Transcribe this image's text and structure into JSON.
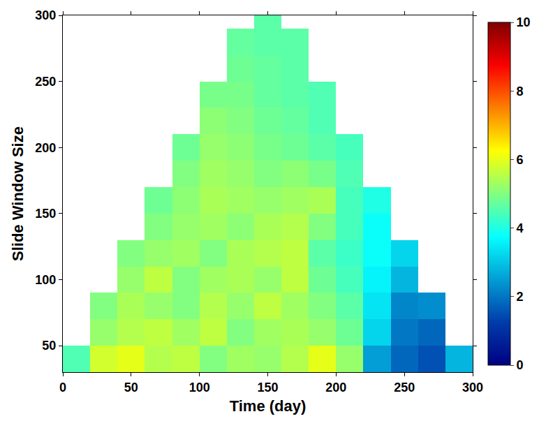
{
  "chart_data": {
    "type": "heatmap",
    "x_label": "Time (day)",
    "y_label": "Slide Window Size",
    "xlim": [
      0,
      300
    ],
    "xticks": [
      0,
      50,
      100,
      150,
      200,
      250,
      300
    ],
    "ylim": [
      30,
      300
    ],
    "yticks": [
      50,
      100,
      150,
      200,
      250,
      300
    ],
    "x": [
      10,
      30,
      50,
      70,
      90,
      110,
      130,
      150,
      170,
      190,
      210,
      230,
      250,
      270,
      290
    ],
    "y": [
      40,
      60,
      80,
      100,
      120,
      140,
      160,
      180,
      200,
      220,
      240,
      260,
      280,
      300
    ],
    "z": [
      [
        4.5,
        5.8,
        6.0,
        5.5,
        5.6,
        5.0,
        5.3,
        5.2,
        5.5,
        6.0,
        5.2,
        2.5,
        1.8,
        1.5,
        2.8
      ],
      [
        null,
        5.2,
        5.5,
        5.6,
        5.3,
        5.6,
        5.0,
        5.3,
        5.4,
        5.2,
        4.8,
        3.2,
        2.0,
        1.8,
        null
      ],
      [
        null,
        5.0,
        5.4,
        5.2,
        5.0,
        5.5,
        5.2,
        5.6,
        5.3,
        5.0,
        4.6,
        3.4,
        2.2,
        2.3,
        null
      ],
      [
        null,
        null,
        5.2,
        5.6,
        5.0,
        5.3,
        5.4,
        5.2,
        5.6,
        4.8,
        4.4,
        3.6,
        2.8,
        null,
        null
      ],
      [
        null,
        null,
        5.0,
        5.2,
        5.3,
        5.0,
        5.4,
        5.5,
        5.6,
        4.6,
        4.3,
        3.8,
        3.2,
        null,
        null
      ],
      [
        null,
        null,
        null,
        5.0,
        5.2,
        5.3,
        5.1,
        5.4,
        5.5,
        5.0,
        4.4,
        3.8,
        null,
        null,
        null
      ],
      [
        null,
        null,
        null,
        4.8,
        5.1,
        5.4,
        5.3,
        5.2,
        5.3,
        5.4,
        4.4,
        4.0,
        null,
        null,
        null
      ],
      [
        null,
        null,
        null,
        null,
        5.0,
        5.3,
        5.2,
        5.0,
        5.1,
        4.9,
        4.5,
        null,
        null,
        null,
        null
      ],
      [
        null,
        null,
        null,
        null,
        4.8,
        5.2,
        5.1,
        4.9,
        4.8,
        4.6,
        4.4,
        null,
        null,
        null,
        null
      ],
      [
        null,
        null,
        null,
        null,
        null,
        5.1,
        5.0,
        4.8,
        4.7,
        4.5,
        null,
        null,
        null,
        null,
        null
      ],
      [
        null,
        null,
        null,
        null,
        null,
        4.9,
        4.9,
        4.7,
        4.6,
        4.5,
        null,
        null,
        null,
        null,
        null
      ],
      [
        null,
        null,
        null,
        null,
        null,
        null,
        4.8,
        4.7,
        4.6,
        null,
        null,
        null,
        null,
        null,
        null
      ],
      [
        null,
        null,
        null,
        null,
        null,
        null,
        4.7,
        4.6,
        4.6,
        null,
        null,
        null,
        null,
        null,
        null
      ],
      [
        null,
        null,
        null,
        null,
        null,
        null,
        null,
        4.6,
        null,
        null,
        null,
        null,
        null,
        null,
        null
      ]
    ],
    "colorbar_range": [
      0,
      10
    ],
    "colorbar_ticks": [
      0,
      2,
      4,
      6,
      8,
      10
    ]
  }
}
